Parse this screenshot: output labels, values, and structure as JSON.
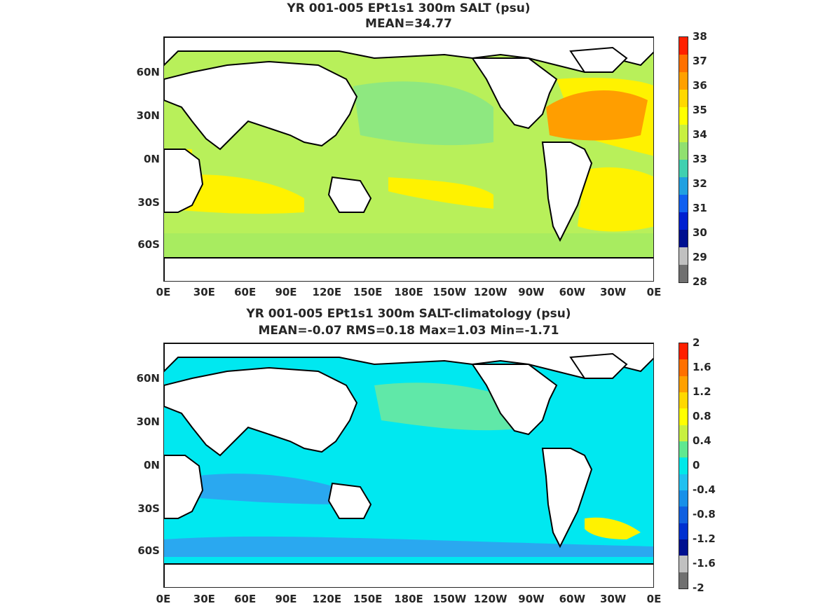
{
  "top_panel": {
    "title_line1": "YR 001-005 EPt1s1 300m SALT (psu)",
    "title_line2": "MEAN=34.77",
    "colorbar_ticks": [
      "38",
      "37",
      "36",
      "35",
      "34",
      "33",
      "32",
      "31",
      "30",
      "29",
      "28"
    ],
    "colorbar_colors": [
      "#ff2000",
      "#ff7000",
      "#ffa000",
      "#ffd800",
      "#ffff00",
      "#c8f040",
      "#90e070",
      "#40d0b0",
      "#20a0e0",
      "#1060f0",
      "#0020d0",
      "#001090",
      "#c0c0c0",
      "#707070"
    ]
  },
  "bottom_panel": {
    "title_line1": "YR 001-005 EPt1s1 300m SALT-climatology (psu)",
    "title_line2": "MEAN=-0.07   RMS=0.18   Max=1.03   Min=-1.71",
    "colorbar_ticks": [
      "2",
      "1.6",
      "1.2",
      "0.8",
      "0.4",
      "0",
      "-0.4",
      "-0.8",
      "-1.2",
      "-1.6",
      "-2"
    ],
    "colorbar_colors": [
      "#ff2000",
      "#ff7000",
      "#ffa000",
      "#ffd800",
      "#ffff00",
      "#c8f040",
      "#60e890",
      "#00e8e8",
      "#20c0f0",
      "#1890e8",
      "#1060e0",
      "#0030d0",
      "#001090",
      "#c0c0c0",
      "#707070"
    ]
  },
  "y_ticks": [
    "60N",
    "30N",
    "0N",
    "30S",
    "60S"
  ],
  "x_ticks": [
    "0E",
    "30E",
    "60E",
    "90E",
    "120E",
    "150E",
    "180E",
    "150W",
    "120W",
    "90W",
    "60W",
    "30W",
    "0E"
  ],
  "colors": {
    "land": "#ffffff",
    "coast": "#000000",
    "top_ocean_base": "#b8f05a",
    "top_atlantic_high": "#ff9e00",
    "top_subtropical": "#fff200",
    "top_pacific_mid": "#8ee880",
    "bottom_ocean_base": "#00e8f0",
    "bottom_low": "#2aa8f0",
    "bottom_pos": "#60e8a8"
  }
}
